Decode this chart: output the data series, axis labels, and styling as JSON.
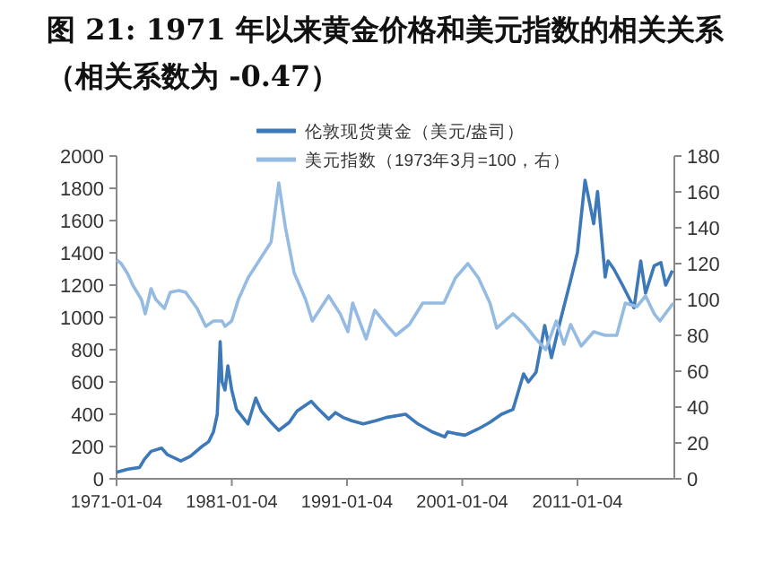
{
  "chart_data": {
    "type": "line",
    "title": "图 21: 1971 年以来黄金价格和美元指数的相关关系（相关系数为 -0.47）",
    "xlim": [
      "1971-01-04",
      "2019-06-01"
    ],
    "xticks": [
      "1971-01-04",
      "1981-01-04",
      "1991-01-04",
      "2001-01-04",
      "2011-01-04"
    ],
    "ylim": [
      0,
      2000
    ],
    "yticks": [
      0,
      200,
      400,
      600,
      800,
      1000,
      1200,
      1400,
      1600,
      1800,
      2000
    ],
    "y2lim": [
      0,
      180
    ],
    "y2ticks": [
      0,
      20,
      40,
      60,
      80,
      100,
      120,
      140,
      160,
      180
    ],
    "legend": "top",
    "grid": false,
    "series": [
      {
        "name": "伦敦现货黄金（美元/盎司）",
        "color": "#3d78b8",
        "x": [
          "1971-01-04",
          "1972-01",
          "1973-01",
          "1973-06",
          "1974-01",
          "1974-12",
          "1975-06",
          "1976-08",
          "1977-06",
          "1978-06",
          "1979-01",
          "1979-06",
          "1979-10",
          "1980-01",
          "1980-03",
          "1980-06",
          "1980-09",
          "1981-01",
          "1981-06",
          "1982-06",
          "1983-02",
          "1983-08",
          "1984-06",
          "1985-02",
          "1986-01",
          "1986-09",
          "1987-12",
          "1988-06",
          "1989-06",
          "1990-01",
          "1990-09",
          "1991-06",
          "1992-06",
          "1993-07",
          "1994-06",
          "1996-02",
          "1997-03",
          "1998-06",
          "1999-07",
          "1999-10",
          "2000-06",
          "2001-04",
          "2002-06",
          "2003-06",
          "2004-06",
          "2005-06",
          "2006-05",
          "2006-10",
          "2007-06",
          "2008-03",
          "2008-10",
          "2009-06",
          "2010-06",
          "2011-01",
          "2011-09",
          "2012-02",
          "2012-06",
          "2012-10",
          "2013-06",
          "2013-09",
          "2014-03",
          "2014-12",
          "2015-12",
          "2016-07",
          "2016-12",
          "2017-09",
          "2018-04",
          "2018-09",
          "2019-04"
        ],
        "values": [
          40,
          60,
          70,
          120,
          170,
          190,
          150,
          110,
          140,
          200,
          230,
          290,
          400,
          850,
          600,
          550,
          700,
          550,
          430,
          340,
          500,
          420,
          350,
          300,
          350,
          420,
          480,
          440,
          370,
          410,
          380,
          360,
          340,
          360,
          380,
          400,
          340,
          290,
          260,
          290,
          280,
          270,
          310,
          350,
          400,
          430,
          650,
          600,
          660,
          950,
          750,
          950,
          1230,
          1400,
          1850,
          1700,
          1580,
          1780,
          1250,
          1350,
          1300,
          1200,
          1060,
          1350,
          1150,
          1320,
          1340,
          1200,
          1290
        ]
      },
      {
        "name": "美元指数（1973年3月=100，右）",
        "color": "#95bbe3",
        "axis": "y2",
        "x": [
          "1971-01-04",
          "1971-06",
          "1972-01",
          "1972-06",
          "1973-03",
          "1973-07",
          "1974-01",
          "1974-06",
          "1975-03",
          "1975-09",
          "1976-06",
          "1977-01",
          "1978-01",
          "1978-10",
          "1979-06",
          "1980-03",
          "1980-06",
          "1981-01",
          "1981-08",
          "1982-06",
          "1983-06",
          "1984-06",
          "1985-02",
          "1985-09",
          "1986-06",
          "1987-06",
          "1988-01",
          "1989-06",
          "1990-06",
          "1991-02",
          "1991-07",
          "1992-09",
          "1993-06",
          "1994-06",
          "1995-04",
          "1996-06",
          "1997-08",
          "1998-08",
          "1999-06",
          "2000-06",
          "2001-07",
          "2002-06",
          "2003-06",
          "2004-01",
          "2005-06",
          "2006-06",
          "2007-06",
          "2008-04",
          "2009-03",
          "2009-11",
          "2010-06",
          "2011-05",
          "2012-06",
          "2013-06",
          "2014-06",
          "2015-03",
          "2016-03",
          "2016-12",
          "2017-09",
          "2018-03",
          "2019-05"
        ],
        "values": [
          122,
          120,
          114,
          108,
          100,
          92,
          106,
          100,
          95,
          104,
          105,
          104,
          95,
          85,
          88,
          88,
          85,
          88,
          100,
          112,
          122,
          132,
          165,
          140,
          115,
          100,
          88,
          102,
          92,
          82,
          98,
          78,
          94,
          86,
          80,
          86,
          98,
          98,
          98,
          112,
          120,
          112,
          98,
          84,
          92,
          86,
          78,
          72,
          88,
          75,
          86,
          74,
          82,
          80,
          80,
          98,
          96,
          102,
          92,
          88,
          98
        ]
      }
    ]
  }
}
